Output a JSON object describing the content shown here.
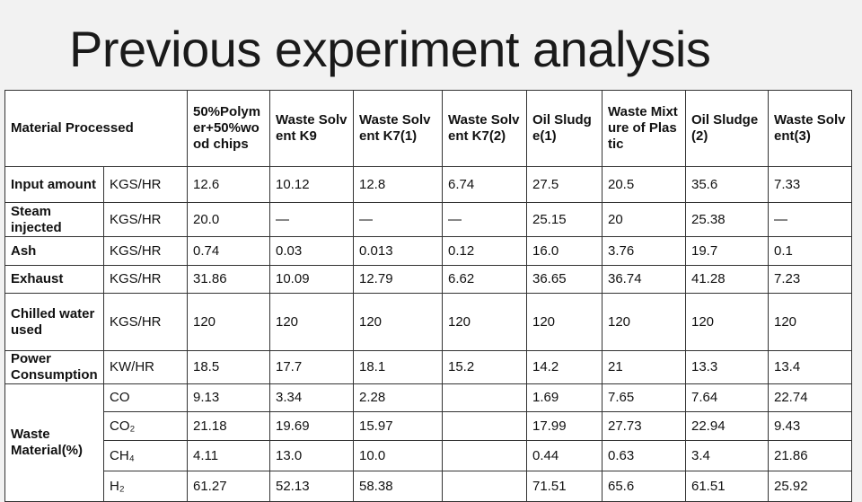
{
  "title": "Previous experiment analysis",
  "table": {
    "header_label": "Material Processed",
    "columns": [
      "50%Polymer+50%wood chips",
      "Waste Solvent K9",
      "Waste Solvent K7(1)",
      "Waste Solvent K7(2)",
      "Oil Sludge(1)",
      "Waste Mixture of Plastic",
      "Oil Sludge(2)",
      "Waste Solvent(3)"
    ],
    "rows": [
      {
        "label": "Input amount",
        "unit": "KGS/HR",
        "values": [
          "12.6",
          "10.12",
          "12.8",
          "6.74",
          "27.5",
          "20.5",
          "35.6",
          "7.33"
        ]
      },
      {
        "label": "Steam injected",
        "unit": "KGS/HR",
        "values": [
          "20.0",
          "—",
          "—",
          "—",
          "25.15",
          "20",
          "25.38",
          "—"
        ]
      },
      {
        "label": "Ash",
        "unit": "KGS/HR",
        "values": [
          "0.74",
          "0.03",
          "0.013",
          "0.12",
          "16.0",
          "3.76",
          "19.7",
          "0.1"
        ]
      },
      {
        "label": "Exhaust",
        "unit": "KGS/HR",
        "values": [
          "31.86",
          "10.09",
          "12.79",
          "6.62",
          "36.65",
          "36.74",
          "41.28",
          "7.23"
        ]
      },
      {
        "label": "Chilled water used",
        "unit": "KGS/HR",
        "values": [
          "120",
          "120",
          "120",
          "120",
          "120",
          "120",
          "120",
          "120"
        ]
      },
      {
        "label": "Power Consumption",
        "unit": "KW/HR",
        "values": [
          "18.5",
          "17.7",
          "18.1",
          "15.2",
          "14.2",
          "21",
          "13.3",
          "13.4"
        ]
      }
    ],
    "group": {
      "label": "Waste Material(%)",
      "rows": [
        {
          "unit": "CO",
          "values": [
            "9.13",
            "3.34",
            "2.28",
            null,
            "1.69",
            "7.65",
            "7.64",
            "22.74"
          ]
        },
        {
          "unit": "CO₂",
          "values": [
            "21.18",
            "19.69",
            "15.97",
            null,
            "17.99",
            "27.73",
            "22.94",
            "9.43"
          ]
        },
        {
          "unit": "CH₄",
          "values": [
            "4.11",
            "13.0",
            "10.0",
            null,
            "0.44",
            "0.63",
            "3.4",
            "21.86"
          ]
        },
        {
          "unit": "H₂",
          "values": [
            "61.27",
            "52.13",
            "58.38",
            null,
            "71.51",
            "65.6",
            "61.51",
            "25.92"
          ]
        }
      ]
    }
  }
}
